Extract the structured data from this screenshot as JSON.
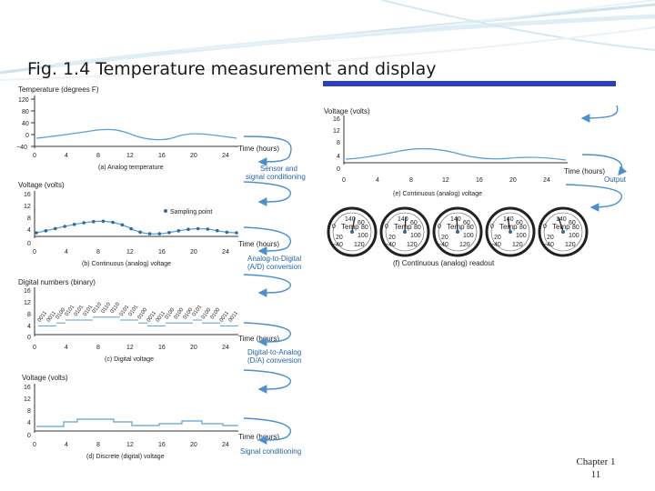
{
  "slide": {
    "title": "Fig. 1.4 Temperature measurement and display",
    "footer_line1": "Chapter 1",
    "footer_line2": "11"
  },
  "colors": {
    "accent_rule": "#2b3fc2",
    "curve": "#5aa0d8",
    "arrow": "#4a8fd0",
    "point": "#2e6a9a"
  },
  "panels": {
    "a": {
      "ylabel": "Temperature (degrees F)",
      "yticks": [
        "120",
        "80",
        "40",
        "0",
        "−40"
      ],
      "xticks": [
        "0",
        "4",
        "8",
        "12",
        "16",
        "20",
        "24"
      ],
      "xlabel": "Time (hours)",
      "caption": "(a) Analog temperature"
    },
    "b": {
      "ylabel": "Voltage (volts)",
      "yticks": [
        "16",
        "12",
        "8",
        "4",
        "0"
      ],
      "xticks": [
        "0",
        "4",
        "8",
        "12",
        "16",
        "20",
        "24"
      ],
      "xlabel": "Time (hours)",
      "caption": "(b) Continuous (analog) voltage",
      "sampling_label": "Sampling point"
    },
    "c": {
      "ylabel": "Digital numbers (binary)",
      "yticks": [
        "16",
        "12",
        "8",
        "4",
        "0"
      ],
      "xticks": [
        "0",
        "4",
        "8",
        "12",
        "16",
        "20",
        "24"
      ],
      "xlabel": "Time (hours)",
      "caption": "(c) Digital voltage",
      "binary_codes": [
        "0011",
        "0011",
        "0100",
        "0101",
        "0101",
        "0101",
        "0110",
        "0110",
        "0110",
        "0101",
        "0101",
        "0100",
        "0011",
        "0011",
        "0100",
        "0100",
        "0100",
        "0101",
        "0100",
        "0100",
        "0011",
        "0011"
      ]
    },
    "d": {
      "ylabel": "Voltage (volts)",
      "yticks": [
        "16",
        "12",
        "8",
        "4",
        "0"
      ],
      "xticks": [
        "0",
        "4",
        "8",
        "12",
        "16",
        "20",
        "24"
      ],
      "xlabel": "Time (hours)",
      "caption": "(d) Discrete (digital) voltage"
    },
    "e": {
      "ylabel": "Voltage (volts)",
      "yticks": [
        "16",
        "12",
        "8",
        "4",
        "0"
      ],
      "xticks": [
        "0",
        "4",
        "8",
        "12",
        "16",
        "20",
        "24"
      ],
      "xlabel": "Time (hours)",
      "caption": "(e) Continuous (analog) voltage"
    },
    "f": {
      "caption": "(f) Continuous (analog) readout",
      "gauge_label": "Temp",
      "dial_numbers": [
        "140",
        "60",
        "80",
        "0",
        "100",
        "20",
        "−40",
        "120"
      ],
      "gauge_count": 5
    }
  },
  "steps": {
    "sensor_line1": "Sensor and",
    "sensor_line2": "signal conditioning",
    "ad_line1": "Analog-to-Digital",
    "ad_line2": "(A/D) conversion",
    "da_line1": "Digital-to-Analog",
    "da_line2": "(D/A) conversion",
    "signal_conditioning": "Signal conditioning",
    "output": "Output"
  },
  "chart_data": {
    "type": "line",
    "x": [
      0,
      2,
      4,
      6,
      8,
      10,
      12,
      14,
      16,
      18,
      20,
      22,
      24
    ],
    "series": [
      {
        "values": [
          4,
          4,
          5,
          6,
          6.5,
          6.5,
          5,
          4,
          3.5,
          4,
          5,
          4.5,
          4
        ]
      }
    ],
    "xlabel": "Time (hours)",
    "ylabel": "Voltage (volts)",
    "ylim": [
      0,
      16
    ],
    "xlim": [
      0,
      24
    ]
  }
}
